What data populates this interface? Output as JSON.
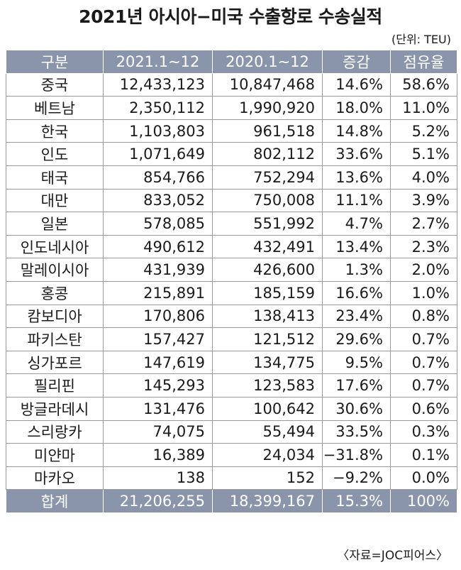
{
  "title": "2021년 아시아−미국 수출항로 수송실적",
  "unit": "(단위: TEU)",
  "table": {
    "headers": [
      "구분",
      "2021.1∼12",
      "2020.1∼12",
      "증감",
      "점유율"
    ],
    "rows": [
      [
        "중국",
        "12,433,123",
        "10,847,468",
        "14.6%",
        "58.6%"
      ],
      [
        "베트남",
        "2,350,112",
        "1,990,920",
        "18.0%",
        "11.0%"
      ],
      [
        "한국",
        "1,103,803",
        "961,518",
        "14.8%",
        "5.2%"
      ],
      [
        "인도",
        "1,071,649",
        "802,112",
        "33.6%",
        "5.1%"
      ],
      [
        "태국",
        "854,766",
        "752,294",
        "13.6%",
        "4.0%"
      ],
      [
        "대만",
        "833,052",
        "750,008",
        "11.1%",
        "3.9%"
      ],
      [
        "일본",
        "578,085",
        "551,992",
        "4.7%",
        "2.7%"
      ],
      [
        "인도네시아",
        "490,612",
        "432,491",
        "13.4%",
        "2.3%"
      ],
      [
        "말레이시아",
        "431,939",
        "426,600",
        "1.3%",
        "2.0%"
      ],
      [
        "홍콩",
        "215,891",
        "185,159",
        "16.6%",
        "1.0%"
      ],
      [
        "캄보디아",
        "170,806",
        "138,413",
        "23.4%",
        "0.8%"
      ],
      [
        "파키스탄",
        "157,427",
        "121,512",
        "29.6%",
        "0.7%"
      ],
      [
        "싱가포르",
        "147,619",
        "134,775",
        "9.5%",
        "0.7%"
      ],
      [
        "필리핀",
        "145,293",
        "123,583",
        "17.6%",
        "0.7%"
      ],
      [
        "방글라데시",
        "131,476",
        "100,642",
        "30.6%",
        "0.6%"
      ],
      [
        "스리랑카",
        "74,075",
        "55,494",
        "33.5%",
        "0.3%"
      ],
      [
        "미얀마",
        "16,389",
        "24,034",
        "−31.8%",
        "0.1%"
      ],
      [
        "마카오",
        "138",
        "152",
        "−9.2%",
        "0.0%"
      ]
    ],
    "total": [
      "합계",
      "21,206,255",
      "18,399,167",
      "15.3%",
      "100%"
    ]
  },
  "source": "〈자료=JOC피어스〉",
  "colors": {
    "header_bg": "#8a95ab",
    "header_text": "#ffffff",
    "border": "#9a9a9a"
  }
}
